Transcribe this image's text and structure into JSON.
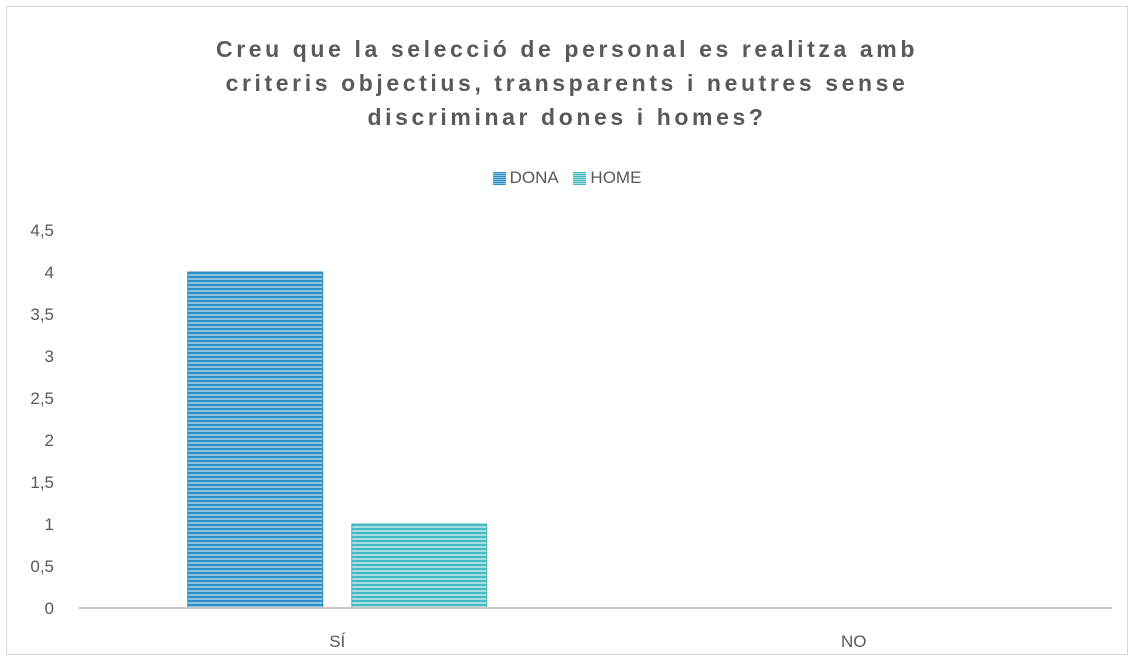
{
  "chart_data": {
    "type": "bar",
    "title_lines": [
      "Creu que la selecció de personal es realitza amb",
      "criteris objectius, transparents i neutres sense",
      "discriminar dones i homes?"
    ],
    "categories": [
      "SÍ",
      "NO"
    ],
    "series": [
      {
        "name": "DONA",
        "values": [
          4,
          0
        ]
      },
      {
        "name": "HOME",
        "values": [
          1,
          0
        ]
      }
    ],
    "ylim": [
      0,
      4.5
    ],
    "y_ticks": [
      "0",
      "0,5",
      "1",
      "1,5",
      "2",
      "2,5",
      "3",
      "3,5",
      "4",
      "4,5"
    ],
    "legend_position": "top",
    "grid": false,
    "colors": {
      "DONA": "#2f8fc4",
      "HOME": "#46b9c2"
    }
  }
}
